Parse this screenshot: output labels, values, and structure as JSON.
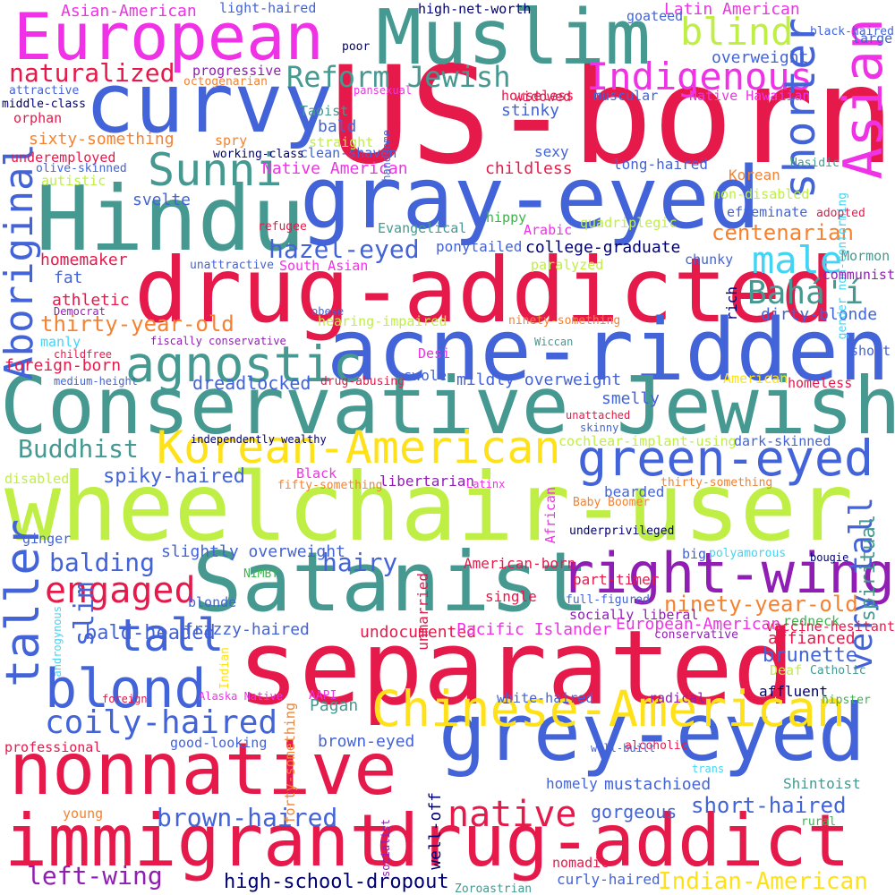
{
  "words": [
    {
      "text": "US-born",
      "color": "#e6194b"
    },
    {
      "text": "Muslim",
      "color": "#469990"
    },
    {
      "text": "European",
      "color": "#f032e6"
    },
    {
      "text": "curvy",
      "color": "#4363d8"
    },
    {
      "text": "gray-eyed",
      "color": "#4363d8"
    },
    {
      "text": "Hindu",
      "color": "#469990"
    },
    {
      "text": "drug-addicted",
      "color": "#e6194b"
    },
    {
      "text": "acne-ridden",
      "color": "#4363d8"
    },
    {
      "text": "Conservative Jewish",
      "color": "#469990"
    },
    {
      "text": "wheelchair-user",
      "color": "#bfef45"
    },
    {
      "text": "Satanist",
      "color": "#469990"
    },
    {
      "text": "separated",
      "color": "#e6194b"
    },
    {
      "text": "grey-eyed",
      "color": "#4363d8"
    },
    {
      "text": "nonnative",
      "color": "#e6194b"
    },
    {
      "text": "immigrant",
      "color": "#e6194b"
    },
    {
      "text": "drug-addict",
      "color": "#e6194b"
    },
    {
      "text": "Chinese-American",
      "color": "#ffe119"
    },
    {
      "text": "Korean-American",
      "color": "#ffe119"
    },
    {
      "text": "green-eyed",
      "color": "#4363d8"
    },
    {
      "text": "right-wing",
      "color": "#911eb4"
    },
    {
      "text": "agnostic",
      "color": "#469990"
    },
    {
      "text": "blond",
      "color": "#4363d8"
    },
    {
      "text": "Sunni",
      "color": "#469990"
    },
    {
      "text": "Indigenous",
      "color": "#f032e6"
    },
    {
      "text": "shorter",
      "color": "#4363d8"
    },
    {
      "text": "Asian",
      "color": "#f032e6"
    },
    {
      "text": "blind",
      "color": "#bfef45"
    },
    {
      "text": "taller",
      "color": "#4363d8"
    },
    {
      "text": "Aboriginal",
      "color": "#4363d8"
    },
    {
      "text": "tall",
      "color": "#4363d8"
    },
    {
      "text": "coily-haired",
      "color": "#4363d8"
    },
    {
      "text": "very tall",
      "color": "#4363d8"
    },
    {
      "text": "native",
      "color": "#e6194b"
    },
    {
      "text": "Bahá'í",
      "color": "#469990"
    },
    {
      "text": "engaged",
      "color": "#e6194b"
    },
    {
      "text": "male",
      "color": "#42d4f4"
    },
    {
      "text": "Reform Jewish",
      "color": "#469990"
    },
    {
      "text": "naturalized",
      "color": "#e6194b"
    },
    {
      "text": "hazel-eyed",
      "color": "#4363d8"
    },
    {
      "text": "Buddhist",
      "color": "#469990"
    },
    {
      "text": "balding",
      "color": "#4363d8"
    },
    {
      "text": "hairy",
      "color": "#4363d8"
    },
    {
      "text": "brown-haired",
      "color": "#4363d8"
    },
    {
      "text": "left-wing",
      "color": "#911eb4"
    },
    {
      "text": "Indian-American",
      "color": "#ffe119"
    },
    {
      "text": "high-school-dropout",
      "color": "#000075"
    },
    {
      "text": "thirty-year-old",
      "color": "#f58231"
    },
    {
      "text": "centenarian",
      "color": "#f58231"
    },
    {
      "text": "ninety-year-old",
      "color": "#f58231"
    },
    {
      "text": "short-haired",
      "color": "#4363d8"
    },
    {
      "text": "slim",
      "color": "#4363d8"
    },
    {
      "text": "spiky-haired",
      "color": "#4363d8"
    },
    {
      "text": "bald-headed",
      "color": "#4363d8"
    },
    {
      "text": "brunette",
      "color": "#4363d8"
    },
    {
      "text": "spiritual",
      "color": "#469990"
    },
    {
      "text": "gorgeous",
      "color": "#4363d8"
    },
    {
      "text": "dreadlocked",
      "color": "#4363d8"
    },
    {
      "text": "foreign-born",
      "color": "#e6194b"
    },
    {
      "text": "dirty-blonde",
      "color": "#4363d8"
    },
    {
      "text": "college-graduate",
      "color": "#000075"
    },
    {
      "text": "homemaker",
      "color": "#e6194b"
    },
    {
      "text": "childless",
      "color": "#e6194b"
    },
    {
      "text": "Native American",
      "color": "#f032e6"
    },
    {
      "text": "sixty-something",
      "color": "#f58231"
    },
    {
      "text": "stinky",
      "color": "#4363d8"
    },
    {
      "text": "bald",
      "color": "#4363d8"
    },
    {
      "text": "overweight",
      "color": "#4363d8"
    },
    {
      "text": "Asian-American",
      "color": "#f032e6"
    },
    {
      "text": "Latin American",
      "color": "#f032e6"
    },
    {
      "text": "mildly overweight",
      "color": "#4363d8"
    },
    {
      "text": "smelly",
      "color": "#4363d8"
    },
    {
      "text": "undocumented",
      "color": "#e6194b"
    },
    {
      "text": "Pacific Islander",
      "color": "#f032e6"
    },
    {
      "text": "European-American",
      "color": "#f032e6"
    },
    {
      "text": "affianced",
      "color": "#e6194b"
    },
    {
      "text": "Pagan",
      "color": "#469990"
    },
    {
      "text": "brown-eyed",
      "color": "#4363d8"
    },
    {
      "text": "well-off",
      "color": "#000075"
    },
    {
      "text": "mustachioed",
      "color": "#4363d8"
    },
    {
      "text": "slightly overweight",
      "color": "#4363d8"
    },
    {
      "text": "frizzy-haired",
      "color": "#4363d8"
    },
    {
      "text": "svelte",
      "color": "#4363d8"
    },
    {
      "text": "athletic",
      "color": "#e6194b"
    },
    {
      "text": "fat",
      "color": "#4363d8"
    },
    {
      "text": "Korean",
      "color": "#f58231"
    },
    {
      "text": "affluent",
      "color": "#000075"
    },
    {
      "text": "American-born",
      "color": "#e6194b"
    },
    {
      "text": "libertarian",
      "color": "#911eb4"
    },
    {
      "text": "Shintoist",
      "color": "#469990"
    },
    {
      "text": "curly-haired",
      "color": "#4363d8"
    },
    {
      "text": "bearded",
      "color": "#4363d8"
    },
    {
      "text": "part-timer",
      "color": "#e6194b"
    },
    {
      "text": "single",
      "color": "#e6194b"
    },
    {
      "text": "unmarried",
      "color": "#e6194b"
    },
    {
      "text": "swole",
      "color": "#4363d8"
    },
    {
      "text": "homely",
      "color": "#4363d8"
    },
    {
      "text": "ponytailed",
      "color": "#4363d8"
    },
    {
      "text": "long-haired",
      "color": "#4363d8"
    },
    {
      "text": "sexy",
      "color": "#4363d8"
    },
    {
      "text": "ginger",
      "color": "#4363d8"
    },
    {
      "text": "disabled",
      "color": "#bfef45"
    },
    {
      "text": "blonde",
      "color": "#4363d8"
    },
    {
      "text": "big",
      "color": "#4363d8"
    },
    {
      "text": "short",
      "color": "#4363d8"
    },
    {
      "text": "radical",
      "color": "#911eb4"
    },
    {
      "text": "professional",
      "color": "#e6194b"
    },
    {
      "text": "young",
      "color": "#f58231"
    },
    {
      "text": "white-haired",
      "color": "#4363d8"
    },
    {
      "text": "forty-something",
      "color": "#f58231"
    },
    {
      "text": "fifty-something",
      "color": "#f58231"
    },
    {
      "text": "thirty-something",
      "color": "#f58231"
    },
    {
      "text": "ninety-something",
      "color": "#f58231"
    },
    {
      "text": "octogenarian",
      "color": "#f58231"
    },
    {
      "text": "orphan",
      "color": "#e6194b"
    },
    {
      "text": "widowed",
      "color": "#e6194b"
    },
    {
      "text": "houseless",
      "color": "#e6194b"
    },
    {
      "text": "homeless",
      "color": "#e6194b"
    },
    {
      "text": "progressive",
      "color": "#911eb4"
    },
    {
      "text": "high-net-worth",
      "color": "#000075"
    },
    {
      "text": "light-haired",
      "color": "#4363d8"
    },
    {
      "text": "goateed",
      "color": "#4363d8"
    },
    {
      "text": "large",
      "color": "#4363d8"
    },
    {
      "text": "black-haired",
      "color": "#4363d8"
    },
    {
      "text": "poor",
      "color": "#000075"
    },
    {
      "text": "attractive",
      "color": "#4363d8"
    },
    {
      "text": "middle-class",
      "color": "#000075"
    },
    {
      "text": "handsome",
      "color": "#4363d8"
    },
    {
      "text": "pansexual",
      "color": "#f032e6"
    },
    {
      "text": "muscular",
      "color": "#4363d8"
    },
    {
      "text": "Native Hawaiian",
      "color": "#f032e6"
    },
    {
      "text": "Taoist",
      "color": "#469990"
    },
    {
      "text": "straight",
      "color": "#bfef45"
    },
    {
      "text": "clean-shaven",
      "color": "#4363d8"
    },
    {
      "text": "spry",
      "color": "#f58231"
    },
    {
      "text": "working-class",
      "color": "#000075"
    },
    {
      "text": "underemployed",
      "color": "#e6194b"
    },
    {
      "text": "olive-skinned",
      "color": "#4363d8"
    },
    {
      "text": "autistic",
      "color": "#bfef45"
    },
    {
      "text": "Hasidic",
      "color": "#469990"
    },
    {
      "text": "gender non-conforming",
      "color": "#42d4f4"
    },
    {
      "text": "non-disabled",
      "color": "#bfef45"
    },
    {
      "text": "effeminate",
      "color": "#4363d8"
    },
    {
      "text": "adopted",
      "color": "#e6194b"
    },
    {
      "text": "refugee",
      "color": "#e6194b"
    },
    {
      "text": "Evangelical",
      "color": "#469990"
    },
    {
      "text": "hippy",
      "color": "#3cb44b"
    },
    {
      "text": "Arabic",
      "color": "#f032e6"
    },
    {
      "text": "quadriplegic",
      "color": "#bfef45"
    },
    {
      "text": "unattractive",
      "color": "#4363d8"
    },
    {
      "text": "South Asian",
      "color": "#f032e6"
    },
    {
      "text": "paralyzed",
      "color": "#bfef45"
    },
    {
      "text": "chunky",
      "color": "#4363d8"
    },
    {
      "text": "Mormon",
      "color": "#469990"
    },
    {
      "text": "communist",
      "color": "#911eb4"
    },
    {
      "text": "rich",
      "color": "#000075"
    },
    {
      "text": "Democrat",
      "color": "#911eb4"
    },
    {
      "text": "obese",
      "color": "#4363d8"
    },
    {
      "text": "hearing-impaired",
      "color": "#bfef45"
    },
    {
      "text": "manly",
      "color": "#42d4f4"
    },
    {
      "text": "fiscally conservative",
      "color": "#911eb4"
    },
    {
      "text": "Wiccan",
      "color": "#469990"
    },
    {
      "text": "childfree",
      "color": "#e6194b"
    },
    {
      "text": "medium-height",
      "color": "#4363d8"
    },
    {
      "text": "Desi",
      "color": "#f032e6"
    },
    {
      "text": "drug-abusing",
      "color": "#e6194b"
    },
    {
      "text": "American",
      "color": "#ffe119"
    },
    {
      "text": "unattached",
      "color": "#e6194b"
    },
    {
      "text": "skinny",
      "color": "#4363d8"
    },
    {
      "text": "independently wealthy",
      "color": "#000075"
    },
    {
      "text": "cochlear-implant-using",
      "color": "#bfef45"
    },
    {
      "text": "dark-skinned",
      "color": "#4363d8"
    },
    {
      "text": "Black",
      "color": "#f032e6"
    },
    {
      "text": "Latinx",
      "color": "#f032e6"
    },
    {
      "text": "African",
      "color": "#f032e6"
    },
    {
      "text": "Baby Boomer",
      "color": "#f58231"
    },
    {
      "text": "underprivileged",
      "color": "#000075"
    },
    {
      "text": "polyamorous",
      "color": "#42d4f4"
    },
    {
      "text": "bougie",
      "color": "#000075"
    },
    {
      "text": "NIMBY",
      "color": "#3cb44b"
    },
    {
      "text": "androgynous",
      "color": "#42d4f4"
    },
    {
      "text": "full-figured",
      "color": "#4363d8"
    },
    {
      "text": "socially liberal",
      "color": "#911eb4"
    },
    {
      "text": "redneck",
      "color": "#3cb44b"
    },
    {
      "text": "vaccine-hesitant",
      "color": "#e6194b"
    },
    {
      "text": "conservative",
      "color": "#911eb4"
    },
    {
      "text": "Indian",
      "color": "#ffe119"
    },
    {
      "text": "Alaska Native",
      "color": "#f032e6"
    },
    {
      "text": "foreign",
      "color": "#e6194b"
    },
    {
      "text": "Catholic",
      "color": "#469990"
    },
    {
      "text": "Deaf",
      "color": "#bfef45"
    },
    {
      "text": "hipster",
      "color": "#3cb44b"
    },
    {
      "text": "AAPI",
      "color": "#f032e6"
    },
    {
      "text": "good-looking",
      "color": "#4363d8"
    },
    {
      "text": "alcoholic",
      "color": "#e6194b"
    },
    {
      "text": "trans",
      "color": "#42d4f4"
    },
    {
      "text": "well-built",
      "color": "#4363d8"
    },
    {
      "text": "socialist",
      "color": "#911eb4"
    },
    {
      "text": "rural",
      "color": "#3cb44b"
    },
    {
      "text": "nomadic",
      "color": "#e6194b"
    },
    {
      "text": "Zoroastrian",
      "color": "#469990"
    }
  ]
}
